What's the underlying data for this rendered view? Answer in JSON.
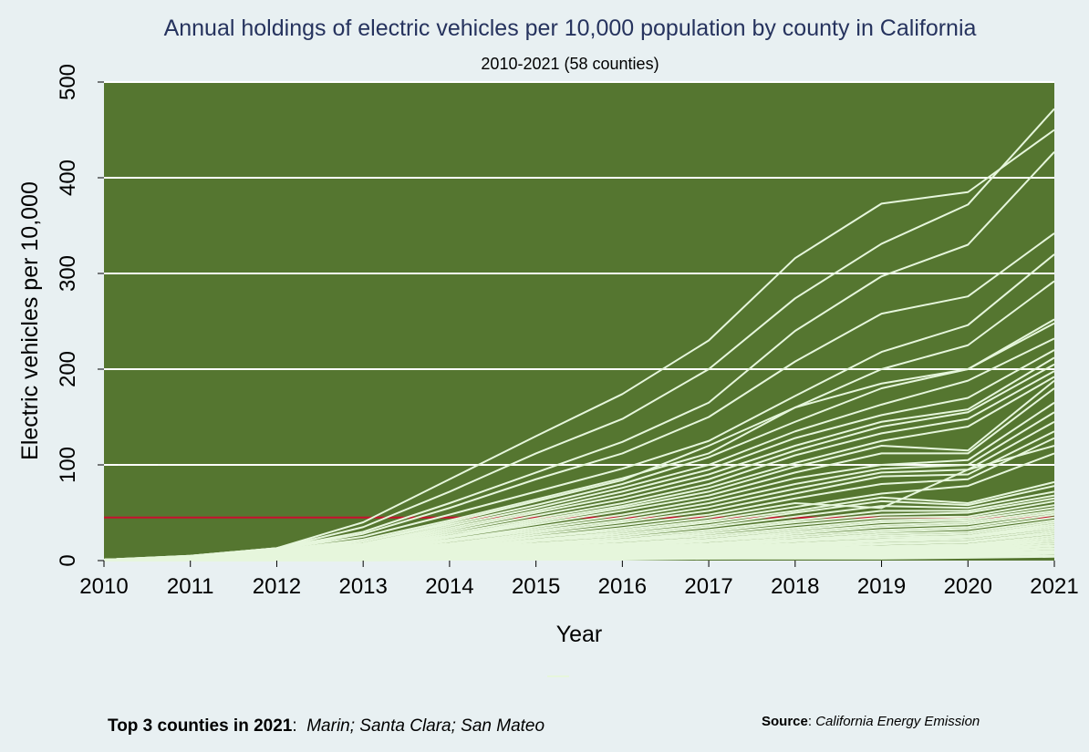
{
  "chart_data": {
    "type": "line",
    "title": "Annual holdings of electric vehicles per 10,000 population  by county in California",
    "subtitle": "2010-2021 (58 counties)",
    "xlabel": "Year",
    "ylabel": "Electric vehicles per 10,000",
    "x": [
      2010,
      2011,
      2012,
      2013,
      2014,
      2015,
      2016,
      2017,
      2018,
      2019,
      2020,
      2021
    ],
    "xlim": [
      2010,
      2021
    ],
    "ylim": [
      0,
      500
    ],
    "yticks": [
      0,
      100,
      200,
      300,
      400,
      500
    ],
    "grid": "horizontal",
    "reference_line": {
      "value": 45,
      "color": "#c8102e"
    },
    "colors": {
      "background": "#e8f0f2",
      "plot_background": "#557630",
      "series_line": "#e6f6dc",
      "gridline": "#ffffff",
      "title": "#26335e"
    },
    "series": [
      {
        "values": [
          1,
          5,
          13,
          40,
          85,
          130,
          174,
          230,
          316,
          373,
          385,
          450
        ]
      },
      {
        "values": [
          1,
          5,
          13,
          35,
          72,
          112,
          148,
          200,
          274,
          331,
          372,
          472
        ]
      },
      {
        "values": [
          1,
          5,
          13,
          30,
          60,
          92,
          124,
          165,
          240,
          297,
          330,
          427
        ]
      },
      {
        "values": [
          1,
          4,
          12,
          28,
          55,
          85,
          112,
          150,
          208,
          258,
          276,
          342
        ]
      },
      {
        "values": [
          1,
          4,
          12,
          25,
          48,
          72,
          96,
          125,
          172,
          218,
          246,
          320
        ]
      },
      {
        "values": [
          1,
          4,
          11,
          22,
          42,
          64,
          86,
          112,
          160,
          200,
          225,
          292
        ]
      },
      {
        "values": [
          1,
          4,
          11,
          20,
          40,
          62,
          84,
          120,
          160,
          185,
          200,
          252
        ]
      },
      {
        "values": [
          1,
          4,
          10,
          20,
          38,
          58,
          80,
          108,
          145,
          180,
          200,
          248
        ]
      },
      {
        "values": [
          1,
          3,
          10,
          18,
          36,
          55,
          76,
          100,
          135,
          163,
          188,
          232
        ]
      },
      {
        "values": [
          1,
          3,
          9,
          17,
          34,
          52,
          72,
          95,
          128,
          152,
          170,
          220
        ]
      },
      {
        "values": [
          1,
          3,
          9,
          16,
          32,
          50,
          68,
          90,
          120,
          145,
          158,
          212
        ]
      },
      {
        "values": [
          1,
          3,
          9,
          15,
          30,
          47,
          64,
          85,
          115,
          140,
          155,
          205
        ]
      },
      {
        "values": [
          1,
          3,
          8,
          14,
          28,
          44,
          60,
          80,
          110,
          133,
          148,
          198
        ]
      },
      {
        "values": [
          1,
          3,
          8,
          14,
          26,
          42,
          57,
          76,
          102,
          125,
          140,
          192
        ]
      },
      {
        "values": [
          1,
          3,
          8,
          13,
          25,
          40,
          55,
          72,
          98,
          120,
          115,
          188
        ]
      },
      {
        "values": [
          1,
          3,
          8,
          12,
          24,
          38,
          52,
          68,
          92,
          112,
          112,
          180
        ]
      },
      {
        "values": [
          1,
          3,
          7,
          12,
          22,
          35,
          48,
          64,
          86,
          100,
          105,
          165
        ]
      },
      {
        "values": [
          1,
          2,
          7,
          11,
          21,
          33,
          45,
          60,
          80,
          96,
          100,
          155
        ]
      },
      {
        "values": [
          1,
          2,
          7,
          10,
          20,
          31,
          42,
          56,
          75,
          92,
          95,
          145
        ]
      },
      {
        "values": [
          1,
          2,
          6,
          10,
          18,
          29,
          40,
          52,
          70,
          88,
          90,
          135
        ]
      },
      {
        "values": [
          1,
          2,
          6,
          9,
          17,
          27,
          37,
          48,
          65,
          80,
          85,
          128
        ]
      },
      {
        "values": [
          1,
          2,
          6,
          9,
          16,
          25,
          34,
          45,
          60,
          55,
          95,
          120
        ]
      },
      {
        "values": [
          1,
          2,
          6,
          8,
          15,
          24,
          32,
          42,
          56,
          70,
          78,
          112
        ]
      },
      {
        "values": [
          1,
          2,
          5,
          8,
          14,
          22,
          30,
          40,
          52,
          66,
          60,
          82
        ]
      },
      {
        "values": [
          1,
          2,
          5,
          7,
          13,
          21,
          28,
          37,
          50,
          62,
          58,
          78
        ]
      },
      {
        "values": [
          1,
          2,
          5,
          7,
          12,
          20,
          26,
          35,
          46,
          57,
          55,
          72
        ]
      },
      {
        "values": [
          1,
          2,
          5,
          6,
          12,
          18,
          24,
          32,
          42,
          52,
          52,
          68
        ]
      },
      {
        "values": [
          1,
          2,
          4,
          6,
          11,
          17,
          22,
          30,
          40,
          48,
          50,
          65
        ]
      },
      {
        "values": [
          1,
          2,
          4,
          6,
          10,
          16,
          21,
          28,
          37,
          45,
          46,
          62
        ]
      },
      {
        "values": [
          1,
          2,
          4,
          5,
          10,
          15,
          20,
          26,
          34,
          42,
          44,
          58
        ]
      },
      {
        "values": [
          1,
          1,
          4,
          5,
          9,
          14,
          18,
          24,
          32,
          40,
          42,
          55
        ]
      },
      {
        "values": [
          1,
          1,
          4,
          5,
          9,
          13,
          17,
          22,
          30,
          37,
          40,
          52
        ]
      },
      {
        "values": [
          1,
          1,
          3,
          4,
          8,
          12,
          16,
          21,
          28,
          35,
          38,
          50
        ]
      },
      {
        "values": [
          1,
          1,
          3,
          4,
          8,
          11,
          15,
          20,
          26,
          32,
          35,
          48
        ]
      },
      {
        "values": [
          1,
          1,
          3,
          4,
          7,
          10,
          14,
          18,
          24,
          30,
          33,
          45
        ]
      },
      {
        "values": [
          1,
          1,
          3,
          4,
          7,
          10,
          13,
          17,
          22,
          28,
          30,
          42
        ]
      },
      {
        "values": [
          1,
          1,
          3,
          3,
          6,
          9,
          12,
          16,
          21,
          26,
          28,
          40
        ]
      },
      {
        "values": [
          1,
          1,
          3,
          3,
          6,
          9,
          12,
          15,
          20,
          24,
          26,
          38
        ]
      },
      {
        "values": [
          1,
          1,
          2,
          3,
          5,
          8,
          11,
          14,
          18,
          22,
          25,
          36
        ]
      },
      {
        "values": [
          1,
          1,
          2,
          3,
          5,
          8,
          10,
          13,
          17,
          21,
          24,
          34
        ]
      },
      {
        "values": [
          1,
          1,
          2,
          3,
          5,
          7,
          10,
          12,
          16,
          20,
          22,
          32
        ]
      },
      {
        "values": [
          1,
          1,
          2,
          2,
          4,
          7,
          9,
          11,
          15,
          18,
          20,
          30
        ]
      },
      {
        "values": [
          1,
          1,
          2,
          2,
          4,
          6,
          8,
          10,
          14,
          17,
          19,
          28
        ]
      },
      {
        "values": [
          1,
          1,
          2,
          2,
          4,
          6,
          8,
          10,
          13,
          15,
          17,
          26
        ]
      },
      {
        "values": [
          1,
          1,
          2,
          2,
          3,
          5,
          7,
          9,
          12,
          14,
          16,
          24
        ]
      },
      {
        "values": [
          1,
          1,
          2,
          2,
          3,
          5,
          7,
          9,
          11,
          13,
          15,
          22
        ]
      },
      {
        "values": [
          1,
          1,
          1,
          2,
          3,
          4,
          6,
          8,
          10,
          12,
          14,
          20
        ]
      },
      {
        "values": [
          1,
          1,
          1,
          2,
          3,
          4,
          6,
          7,
          9,
          11,
          13,
          18
        ]
      },
      {
        "values": [
          1,
          1,
          1,
          2,
          3,
          4,
          5,
          7,
          8,
          10,
          12,
          16
        ]
      },
      {
        "values": [
          1,
          1,
          1,
          1,
          2,
          3,
          5,
          6,
          8,
          9,
          11,
          15
        ]
      },
      {
        "values": [
          1,
          1,
          1,
          1,
          2,
          3,
          4,
          5,
          7,
          8,
          10,
          13
        ]
      },
      {
        "values": [
          1,
          1,
          1,
          1,
          2,
          3,
          4,
          5,
          6,
          7,
          9,
          12
        ]
      },
      {
        "values": [
          0,
          1,
          1,
          1,
          2,
          2,
          3,
          4,
          5,
          6,
          8,
          10
        ]
      },
      {
        "values": [
          0,
          1,
          1,
          1,
          1,
          2,
          3,
          4,
          5,
          6,
          7,
          9
        ]
      },
      {
        "values": [
          0,
          0,
          1,
          1,
          1,
          2,
          3,
          3,
          4,
          5,
          6,
          8
        ]
      },
      {
        "values": [
          0,
          0,
          1,
          1,
          1,
          2,
          2,
          3,
          3,
          4,
          5,
          7
        ]
      },
      {
        "values": [
          0,
          0,
          0,
          1,
          1,
          1,
          2,
          2,
          3,
          3,
          4,
          5
        ]
      },
      {
        "values": [
          0,
          0,
          0,
          0,
          1,
          1,
          1,
          2,
          2,
          2,
          3,
          4
        ]
      }
    ]
  },
  "notes": {
    "top3_label": "Top 3 counties in 2021",
    "top3_colon": ":",
    "top3_values": "Marin;  Santa Clara; San Mateo",
    "source_label": "Source",
    "source_colon": ":",
    "source_value": "California Energy Emission"
  }
}
